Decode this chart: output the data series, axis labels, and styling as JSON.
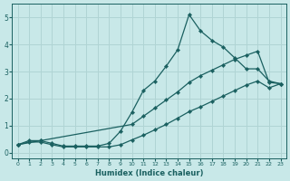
{
  "background_color": "#c8e8e8",
  "grid_color": "#b0d4d4",
  "line_color": "#1a6060",
  "xlabel": "Humidex (Indice chaleur)",
  "xlim": [
    -0.5,
    23.5
  ],
  "ylim": [
    -0.2,
    5.5
  ],
  "xticks": [
    0,
    1,
    2,
    3,
    4,
    5,
    6,
    7,
    8,
    9,
    10,
    11,
    12,
    13,
    14,
    15,
    16,
    17,
    18,
    19,
    20,
    21,
    22,
    23
  ],
  "yticks": [
    0,
    1,
    2,
    3,
    4,
    5
  ],
  "line1_x": [
    0,
    1,
    2,
    3,
    4,
    5,
    6,
    7,
    8,
    9,
    10,
    11,
    12,
    13,
    14,
    15,
    16,
    17,
    18,
    19,
    20,
    21,
    22,
    23
  ],
  "line1_y": [
    0.3,
    0.45,
    0.45,
    0.35,
    0.25,
    0.25,
    0.25,
    0.25,
    0.35,
    0.8,
    1.5,
    2.3,
    2.65,
    3.2,
    3.8,
    5.1,
    4.5,
    4.15,
    3.9,
    3.5,
    3.1,
    3.1,
    2.65,
    2.55
  ],
  "line2_x": [
    0,
    2,
    10,
    11,
    12,
    13,
    14,
    15,
    16,
    17,
    18,
    19,
    20,
    21,
    22,
    23
  ],
  "line2_y": [
    0.3,
    0.45,
    1.05,
    1.35,
    1.65,
    1.95,
    2.25,
    2.6,
    2.85,
    3.05,
    3.25,
    3.45,
    3.6,
    3.75,
    2.6,
    2.55
  ],
  "line3_x": [
    0,
    1,
    2,
    3,
    4,
    5,
    6,
    7,
    8,
    9,
    10,
    11,
    12,
    13,
    14,
    15,
    16,
    17,
    18,
    19,
    20,
    21,
    22,
    23
  ],
  "line3_y": [
    0.3,
    0.4,
    0.4,
    0.3,
    0.22,
    0.22,
    0.22,
    0.22,
    0.22,
    0.3,
    0.48,
    0.65,
    0.85,
    1.05,
    1.28,
    1.52,
    1.7,
    1.9,
    2.1,
    2.3,
    2.5,
    2.65,
    2.4,
    2.55
  ]
}
